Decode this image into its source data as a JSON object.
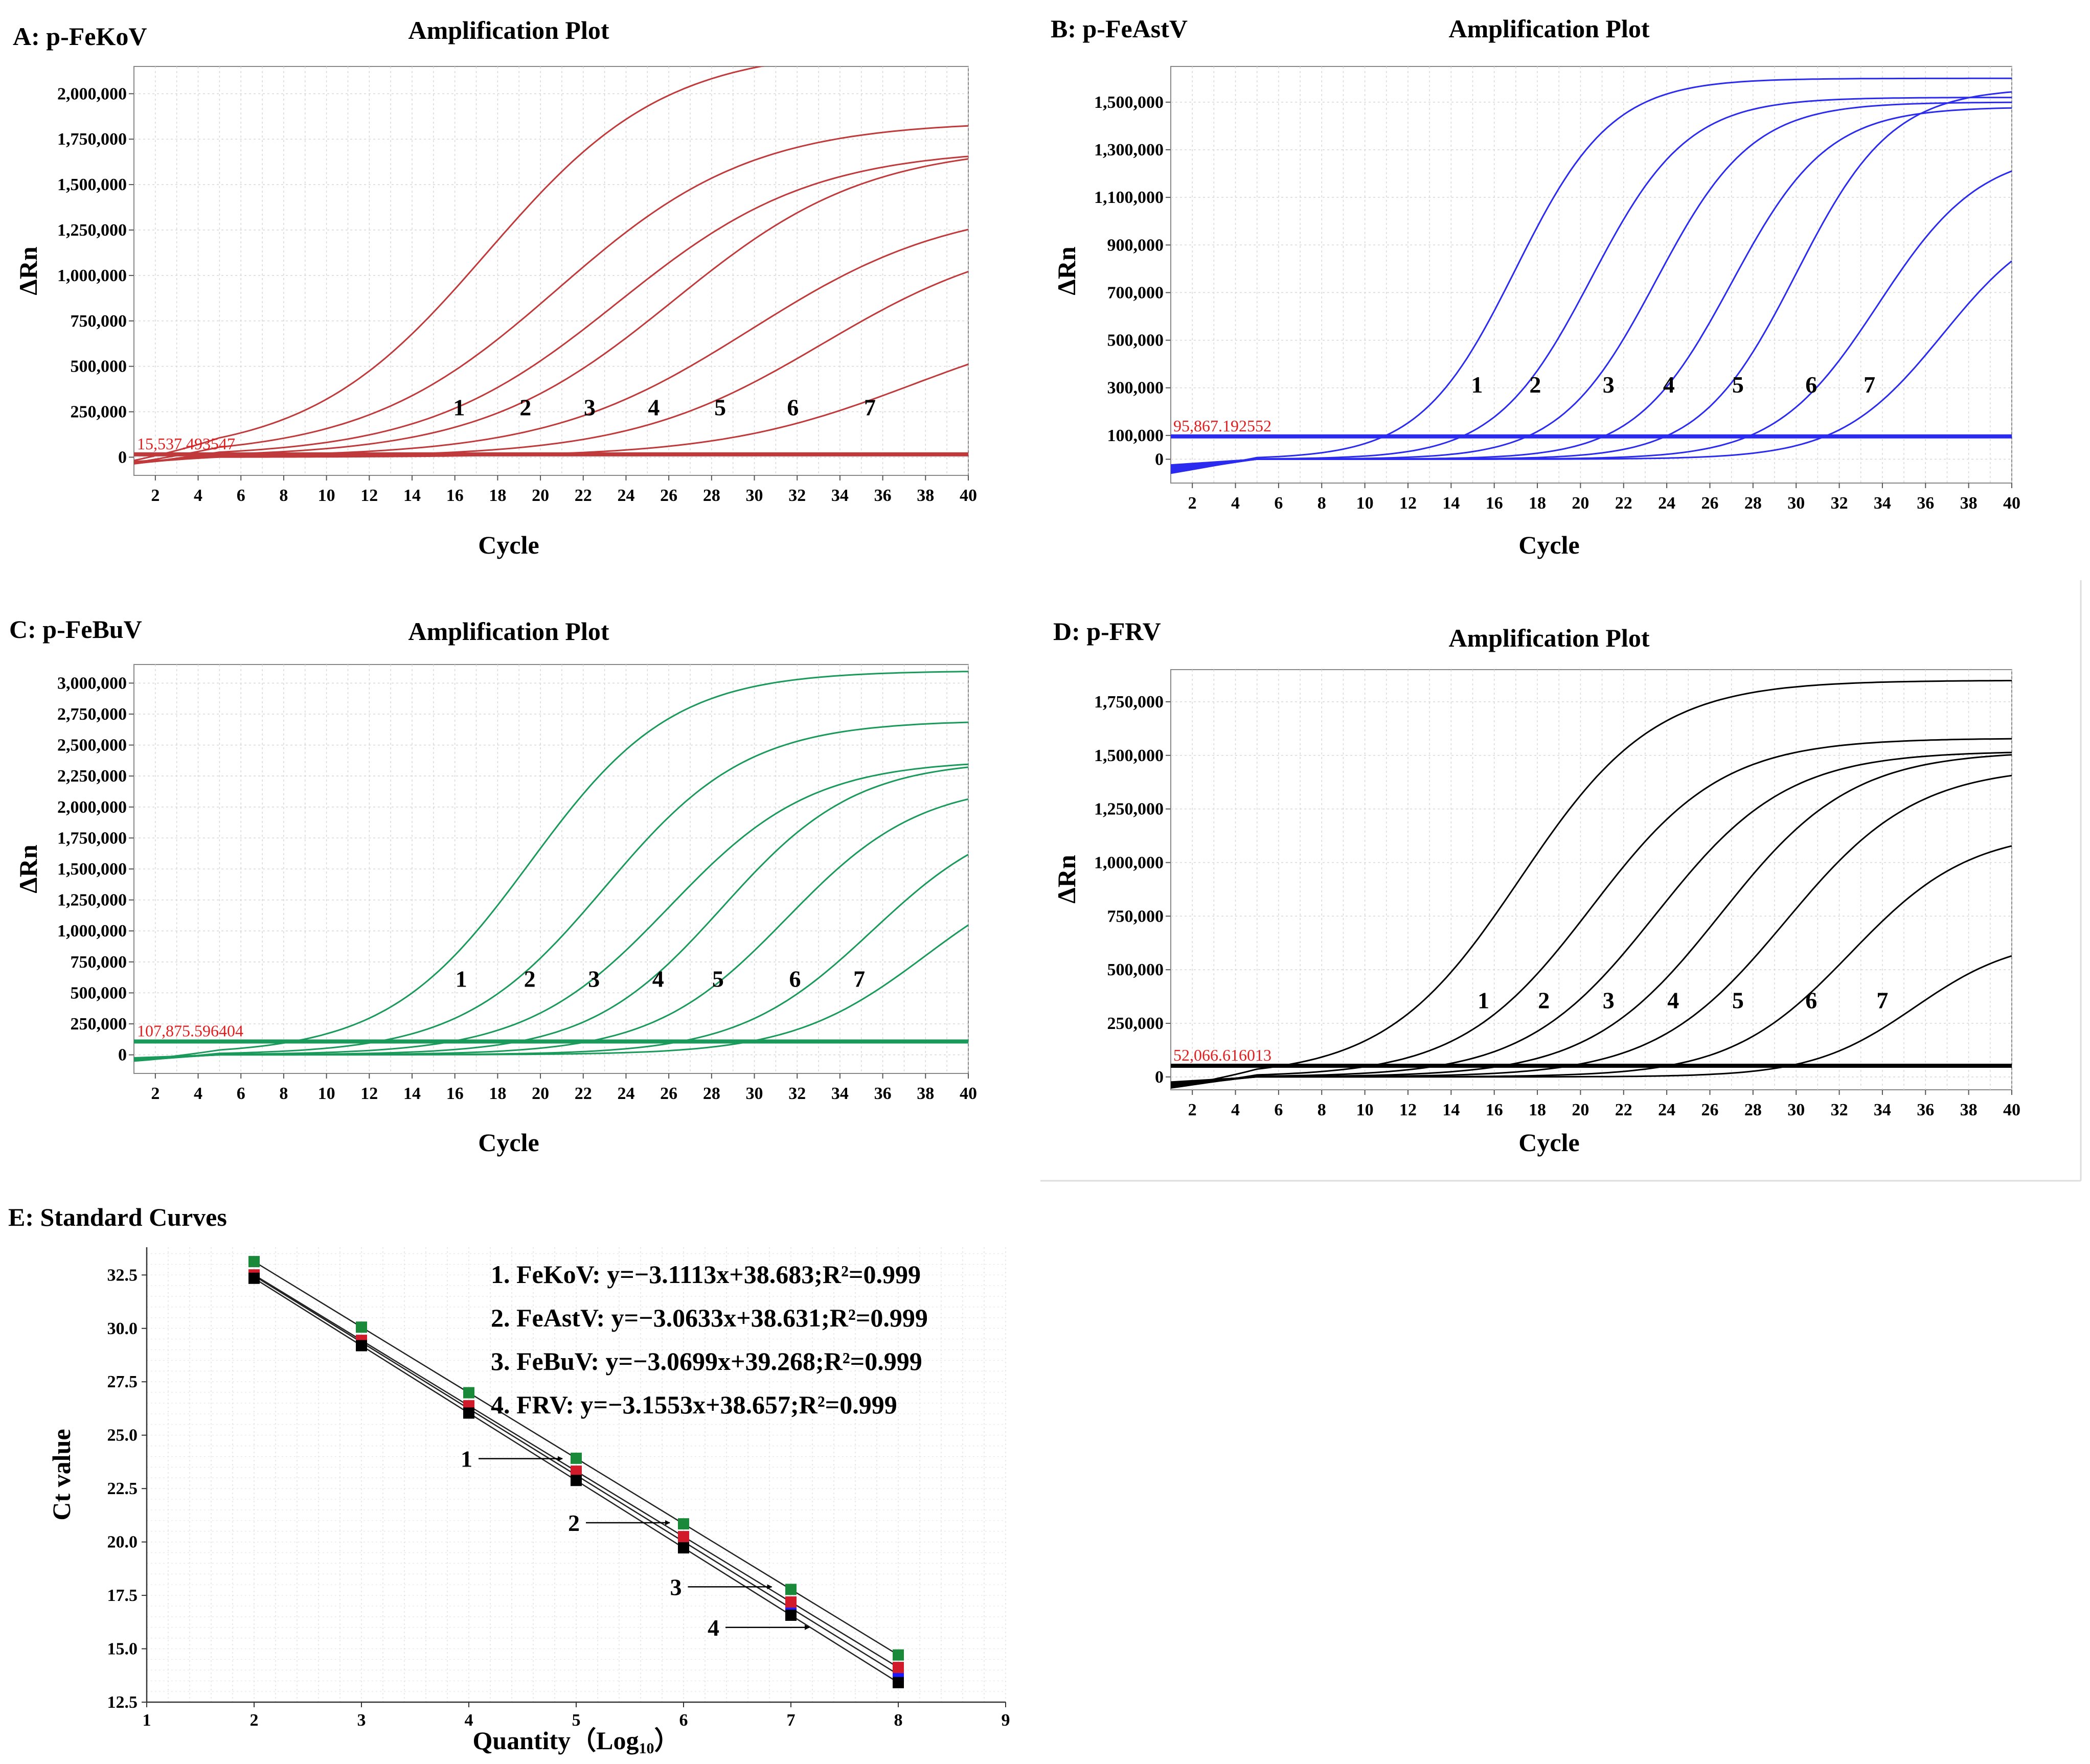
{
  "chart_data": [
    {
      "id": "A",
      "type": "line",
      "panel_label": "A: p-FeKoV",
      "title": "Amplification Plot",
      "xlabel": "Cycle",
      "ylabel": "ΔRn",
      "xlim": [
        1,
        40
      ],
      "ylim": [
        -100000,
        2150000
      ],
      "xticks": [
        2,
        4,
        6,
        8,
        10,
        12,
        14,
        16,
        18,
        20,
        22,
        24,
        26,
        28,
        30,
        32,
        34,
        36,
        38,
        40
      ],
      "yticks": [
        0,
        250000,
        500000,
        750000,
        1000000,
        1250000,
        1500000,
        1750000,
        2000000
      ],
      "ytick_labels": [
        "0",
        "250,000",
        "500,000",
        "750,000",
        "1,000,000",
        "1,250,000",
        "1,500,000",
        "1,750,000",
        "2,000,000"
      ],
      "color": "#c0393b",
      "threshold": 15537.493547,
      "threshold_label": "15,537.493547",
      "series": [
        {
          "name": "1",
          "ct": 17.5,
          "plateau": 2250000,
          "k": 0.24
        },
        {
          "name": "2",
          "ct": 20.8,
          "plateau": 1850000,
          "k": 0.22
        },
        {
          "name": "3",
          "ct": 23.6,
          "plateau": 1700000,
          "k": 0.22
        },
        {
          "name": "4",
          "ct": 26.2,
          "plateau": 1720000,
          "k": 0.22
        },
        {
          "name": "5",
          "ct": 29.8,
          "plateau": 1400000,
          "k": 0.21
        },
        {
          "name": "6",
          "ct": 33.2,
          "plateau": 1250000,
          "k": 0.22
        },
        {
          "name": "7",
          "ct": 37.4,
          "plateau": 800000,
          "k": 0.22
        }
      ],
      "curve_labels": [
        {
          "text": "1",
          "x": 16.2,
          "y": 230000
        },
        {
          "text": "2",
          "x": 19.3,
          "y": 230000
        },
        {
          "text": "3",
          "x": 22.3,
          "y": 230000
        },
        {
          "text": "4",
          "x": 25.3,
          "y": 230000
        },
        {
          "text": "5",
          "x": 28.4,
          "y": 230000
        },
        {
          "text": "6",
          "x": 31.8,
          "y": 230000
        },
        {
          "text": "7",
          "x": 35.4,
          "y": 230000
        }
      ]
    },
    {
      "id": "B",
      "type": "line",
      "panel_label": "B: p-FeAstV",
      "title": "Amplification Plot",
      "xlabel": "Cycle",
      "ylabel": "ΔRn",
      "xlim": [
        1,
        40
      ],
      "ylim": [
        -100000,
        1650000
      ],
      "xticks": [
        2,
        4,
        6,
        8,
        10,
        12,
        14,
        16,
        18,
        20,
        22,
        24,
        26,
        28,
        30,
        32,
        34,
        36,
        38,
        40
      ],
      "yticks": [
        0,
        100000,
        300000,
        500000,
        700000,
        900000,
        1100000,
        1300000,
        1500000
      ],
      "ytick_labels": [
        "0",
        "100,000",
        "300,000",
        "500,000",
        "700,000",
        "900,000",
        "1,100,000",
        "1,300,000",
        "1,500,000"
      ],
      "color": "#2b2bf0",
      "threshold": 95867.192552,
      "threshold_label": "95,867.192552",
      "series": [
        {
          "name": "1",
          "ct": 17.0,
          "plateau": 1600000,
          "k": 0.45
        },
        {
          "name": "2",
          "ct": 20.5,
          "plateau": 1520000,
          "k": 0.45
        },
        {
          "name": "3",
          "ct": 23.5,
          "plateau": 1500000,
          "k": 0.45
        },
        {
          "name": "4",
          "ct": 27.0,
          "plateau": 1480000,
          "k": 0.45
        },
        {
          "name": "5",
          "ct": 30.0,
          "plateau": 1560000,
          "k": 0.45
        },
        {
          "name": "6",
          "ct": 33.8,
          "plateau": 1300000,
          "k": 0.42
        },
        {
          "name": "7",
          "ct": 36.8,
          "plateau": 1050000,
          "k": 0.42
        }
      ],
      "curve_labels": [
        {
          "text": "1",
          "x": 15.2,
          "y": 280000
        },
        {
          "text": "2",
          "x": 17.9,
          "y": 280000
        },
        {
          "text": "3",
          "x": 21.3,
          "y": 280000
        },
        {
          "text": "4",
          "x": 24.1,
          "y": 280000
        },
        {
          "text": "5",
          "x": 27.3,
          "y": 280000
        },
        {
          "text": "6",
          "x": 30.7,
          "y": 280000
        },
        {
          "text": "7",
          "x": 33.4,
          "y": 280000
        }
      ]
    },
    {
      "id": "C",
      "type": "line",
      "panel_label": "C: p-FeBuV",
      "title": "Amplification Plot",
      "xlabel": "Cycle",
      "ylabel": "ΔRn",
      "xlim": [
        1,
        40
      ],
      "ylim": [
        -150000,
        3150000
      ],
      "xticks": [
        2,
        4,
        6,
        8,
        10,
        12,
        14,
        16,
        18,
        20,
        22,
        24,
        26,
        28,
        30,
        32,
        34,
        36,
        38,
        40
      ],
      "yticks": [
        0,
        250000,
        500000,
        750000,
        1000000,
        1250000,
        1500000,
        1750000,
        2000000,
        2250000,
        2500000,
        2750000,
        3000000
      ],
      "ytick_labels": [
        "0",
        "250,000",
        "500,000",
        "750,000",
        "1,000,000",
        "1,250,000",
        "1,500,000",
        "1,750,000",
        "2,000,000",
        "2,250,000",
        "2,500,000",
        "2,750,000",
        "3,000,000"
      ],
      "color": "#1a9a5a",
      "threshold": 107875.596404,
      "threshold_label": "107,875.596404",
      "series": [
        {
          "name": "1",
          "ct": 19.5,
          "plateau": 3100000,
          "k": 0.3
        },
        {
          "name": "2",
          "ct": 23.0,
          "plateau": 2700000,
          "k": 0.3
        },
        {
          "name": "3",
          "ct": 26.0,
          "plateau": 2380000,
          "k": 0.3
        },
        {
          "name": "4",
          "ct": 28.5,
          "plateau": 2380000,
          "k": 0.32
        },
        {
          "name": "5",
          "ct": 31.5,
          "plateau": 2200000,
          "k": 0.32
        },
        {
          "name": "6",
          "ct": 35.5,
          "plateau": 2000000,
          "k": 0.32
        },
        {
          "name": "7",
          "ct": 38.0,
          "plateau": 1600000,
          "k": 0.32
        }
      ],
      "curve_labels": [
        {
          "text": "1",
          "x": 16.3,
          "y": 550000
        },
        {
          "text": "2",
          "x": 19.5,
          "y": 550000
        },
        {
          "text": "3",
          "x": 22.5,
          "y": 550000
        },
        {
          "text": "4",
          "x": 25.5,
          "y": 550000
        },
        {
          "text": "5",
          "x": 28.3,
          "y": 550000
        },
        {
          "text": "6",
          "x": 31.9,
          "y": 550000
        },
        {
          "text": "7",
          "x": 34.9,
          "y": 550000
        }
      ]
    },
    {
      "id": "D",
      "type": "line",
      "panel_label": "D: p-FRV",
      "title": "Amplification Plot",
      "xlabel": "Cycle",
      "ylabel": "ΔRn",
      "xlim": [
        1,
        40
      ],
      "ylim": [
        -60000,
        1900000
      ],
      "xticks": [
        2,
        4,
        6,
        8,
        10,
        12,
        14,
        16,
        18,
        20,
        22,
        24,
        26,
        28,
        30,
        32,
        34,
        36,
        38,
        40
      ],
      "yticks": [
        0,
        250000,
        500000,
        750000,
        1000000,
        1250000,
        1500000,
        1750000
      ],
      "ytick_labels": [
        "0",
        "250,000",
        "500,000",
        "750,000",
        "1,000,000",
        "1,250,000",
        "1,500,000",
        "1,750,000"
      ],
      "color": "#000000",
      "threshold": 52066.616013,
      "threshold_label": "52,066.616013",
      "series": [
        {
          "name": "1",
          "ct": 17.2,
          "plateau": 1850000,
          "k": 0.32
        },
        {
          "name": "2",
          "ct": 20.5,
          "plateau": 1580000,
          "k": 0.33
        },
        {
          "name": "3",
          "ct": 23.5,
          "plateau": 1520000,
          "k": 0.33
        },
        {
          "name": "4",
          "ct": 26.5,
          "plateau": 1520000,
          "k": 0.33
        },
        {
          "name": "5",
          "ct": 29.5,
          "plateau": 1450000,
          "k": 0.33
        },
        {
          "name": "6",
          "ct": 32.5,
          "plateau": 1150000,
          "k": 0.36
        },
        {
          "name": "7",
          "ct": 35.5,
          "plateau": 650000,
          "k": 0.42
        }
      ],
      "curve_labels": [
        {
          "text": "1",
          "x": 15.5,
          "y": 320000
        },
        {
          "text": "2",
          "x": 18.3,
          "y": 320000
        },
        {
          "text": "3",
          "x": 21.3,
          "y": 320000
        },
        {
          "text": "4",
          "x": 24.3,
          "y": 320000
        },
        {
          "text": "5",
          "x": 27.3,
          "y": 320000
        },
        {
          "text": "6",
          "x": 30.7,
          "y": 320000
        },
        {
          "text": "7",
          "x": 34.0,
          "y": 320000
        }
      ]
    },
    {
      "id": "E",
      "type": "scatter",
      "panel_label": "E: Standard Curves",
      "xlabel": "Quantity（Log",
      "xlabel_sub": "10",
      "xlabel_close": "）",
      "ylabel": "Ct value",
      "xlim": [
        1,
        9
      ],
      "ylim": [
        12.5,
        33.8
      ],
      "xticks": [
        1,
        2,
        3,
        4,
        5,
        6,
        7,
        8,
        9
      ],
      "yticks": [
        12.5,
        15,
        17.5,
        20,
        22.5,
        25,
        27.5,
        30,
        32.5
      ],
      "ytick_labels": [
        "12.5",
        "15.0",
        "17.5",
        "20.0",
        "22.5",
        "25.0",
        "27.5",
        "30.0",
        "32.5"
      ],
      "x": [
        2,
        3,
        4,
        5,
        6,
        7,
        8
      ],
      "series": [
        {
          "name": "FeBuV",
          "color": "#1a8a3a",
          "slope": -3.0699,
          "intercept": 39.268
        },
        {
          "name": "FeKoV",
          "color": "#1a1aff",
          "slope": -3.1113,
          "intercept": 38.683
        },
        {
          "name": "FeAstV",
          "color": "#d11a2a",
          "slope": -3.0633,
          "intercept": 38.631
        },
        {
          "name": "FRV",
          "color": "#000000",
          "slope": -3.1553,
          "intercept": 38.657
        }
      ],
      "equations": [
        "1. FeKoV: y=−3.1113x+38.683;R²=0.999",
        "2. FeAstV: y=−3.0633x+38.631;R²=0.999",
        "3. FeBuV: y=−3.0699x+39.268;R²=0.999",
        "4. FRV: y=−3.1553x+38.657;R²=0.999"
      ],
      "line_labels": [
        {
          "text": "1",
          "x": 4.9,
          "y": 23.9
        },
        {
          "text": "2",
          "x": 5.9,
          "y": 20.9
        },
        {
          "text": "3",
          "x": 6.85,
          "y": 17.9
        },
        {
          "text": "4",
          "x": 7.2,
          "y": 16.0
        }
      ]
    }
  ]
}
